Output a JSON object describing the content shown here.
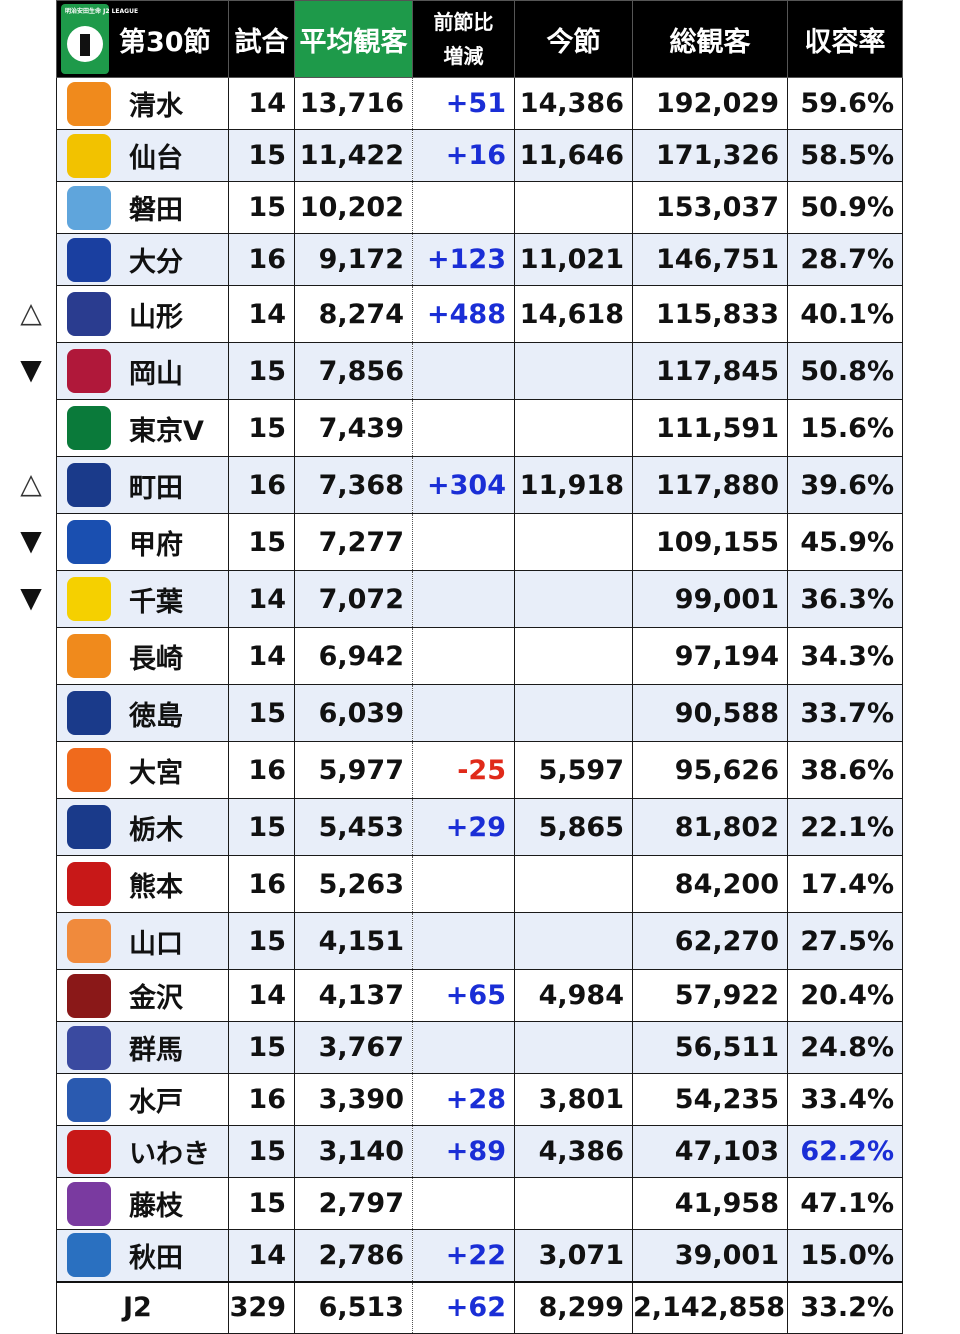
{
  "header": {
    "league_tag": "明治安田生命 J2 LEAGUE",
    "round": "第30節",
    "games": "試合",
    "avg": "平均観客",
    "diff_line1": "前節比",
    "diff_line2": "増減",
    "this_round": "今節",
    "total": "総観客",
    "capacity": "収容率"
  },
  "colors": {
    "header_bg": "#000000",
    "avg_header_bg": "#1e9a4a",
    "positive": "#1a2ed6",
    "negative": "#e02a1a",
    "alt_row": "#e8eef9"
  },
  "rows": [
    {
      "team": "清水",
      "logo": "shimizu-logo",
      "logo_color": "#f08a1c",
      "games": "14",
      "avg": "13,716",
      "diff": "+51",
      "this": "14,386",
      "total": "192,029",
      "cap": "59.6%",
      "arrow": ""
    },
    {
      "team": "仙台",
      "logo": "sendai-logo",
      "logo_color": "#f2c200",
      "games": "15",
      "avg": "11,422",
      "diff": "+16",
      "this": "11,646",
      "total": "171,326",
      "cap": "58.5%",
      "arrow": ""
    },
    {
      "team": "磐田",
      "logo": "iwata-logo",
      "logo_color": "#5fa5dc",
      "games": "15",
      "avg": "10,202",
      "diff": "",
      "this": "",
      "total": "153,037",
      "cap": "50.9%",
      "arrow": ""
    },
    {
      "team": "大分",
      "logo": "oita-logo",
      "logo_color": "#1a3fa0",
      "games": "16",
      "avg": "9,172",
      "diff": "+123",
      "this": "11,021",
      "total": "146,751",
      "cap": "28.7%",
      "arrow": ""
    },
    {
      "team": "山形",
      "logo": "yamagata-logo",
      "logo_color": "#2a3c8f",
      "games": "14",
      "avg": "8,274",
      "diff": "+488",
      "this": "14,618",
      "total": "115,833",
      "cap": "40.1%",
      "arrow": "△"
    },
    {
      "team": "岡山",
      "logo": "okayama-logo",
      "logo_color": "#b0183a",
      "games": "15",
      "avg": "7,856",
      "diff": "",
      "this": "",
      "total": "117,845",
      "cap": "50.8%",
      "arrow": "▼"
    },
    {
      "team": "東京V",
      "logo": "tokyov-logo",
      "logo_color": "#0a7a3a",
      "games": "15",
      "avg": "7,439",
      "diff": "",
      "this": "",
      "total": "111,591",
      "cap": "15.6%",
      "arrow": ""
    },
    {
      "team": "町田",
      "logo": "machida-logo",
      "logo_color": "#1a3a8a",
      "games": "16",
      "avg": "7,368",
      "diff": "+304",
      "this": "11,918",
      "total": "117,880",
      "cap": "39.6%",
      "arrow": "△"
    },
    {
      "team": "甲府",
      "logo": "kofu-logo",
      "logo_color": "#1a4fb0",
      "games": "15",
      "avg": "7,277",
      "diff": "",
      "this": "",
      "total": "109,155",
      "cap": "45.9%",
      "arrow": "▼"
    },
    {
      "team": "千葉",
      "logo": "chiba-logo",
      "logo_color": "#f5d000",
      "games": "14",
      "avg": "7,072",
      "diff": "",
      "this": "",
      "total": "99,001",
      "cap": "36.3%",
      "arrow": "▼"
    },
    {
      "team": "長崎",
      "logo": "nagasaki-logo",
      "logo_color": "#f08a1c",
      "games": "14",
      "avg": "6,942",
      "diff": "",
      "this": "",
      "total": "97,194",
      "cap": "34.3%",
      "arrow": ""
    },
    {
      "team": "徳島",
      "logo": "tokushima-logo",
      "logo_color": "#1a3a8a",
      "games": "15",
      "avg": "6,039",
      "diff": "",
      "this": "",
      "total": "90,588",
      "cap": "33.7%",
      "arrow": ""
    },
    {
      "team": "大宮",
      "logo": "omiya-logo",
      "logo_color": "#f06a1c",
      "games": "16",
      "avg": "5,977",
      "diff": "-25",
      "this": "5,597",
      "total": "95,626",
      "cap": "38.6%",
      "arrow": ""
    },
    {
      "team": "栃木",
      "logo": "tochigi-logo",
      "logo_color": "#1a3a8a",
      "games": "15",
      "avg": "5,453",
      "diff": "+29",
      "this": "5,865",
      "total": "81,802",
      "cap": "22.1%",
      "arrow": ""
    },
    {
      "team": "熊本",
      "logo": "kumamoto-logo",
      "logo_color": "#c81818",
      "games": "16",
      "avg": "5,263",
      "diff": "",
      "this": "",
      "total": "84,200",
      "cap": "17.4%",
      "arrow": ""
    },
    {
      "team": "山口",
      "logo": "yamaguchi-logo",
      "logo_color": "#f08a3c",
      "games": "15",
      "avg": "4,151",
      "diff": "",
      "this": "",
      "total": "62,270",
      "cap": "27.5%",
      "arrow": ""
    },
    {
      "team": "金沢",
      "logo": "kanazawa-logo",
      "logo_color": "#8a1818",
      "games": "14",
      "avg": "4,137",
      "diff": "+65",
      "this": "4,984",
      "total": "57,922",
      "cap": "20.4%",
      "arrow": ""
    },
    {
      "team": "群馬",
      "logo": "gunma-logo",
      "logo_color": "#3a4aa0",
      "games": "15",
      "avg": "3,767",
      "diff": "",
      "this": "",
      "total": "56,511",
      "cap": "24.8%",
      "arrow": ""
    },
    {
      "team": "水戸",
      "logo": "mito-logo",
      "logo_color": "#2a5ab0",
      "games": "16",
      "avg": "3,390",
      "diff": "+28",
      "this": "3,801",
      "total": "54,235",
      "cap": "33.4%",
      "arrow": ""
    },
    {
      "team": "いわき",
      "logo": "iwaki-logo",
      "logo_color": "#c81818",
      "games": "15",
      "avg": "3,140",
      "diff": "+89",
      "this": "4,386",
      "total": "47,103",
      "cap": "62.2%",
      "arrow": "",
      "cap_highlight": true
    },
    {
      "team": "藤枝",
      "logo": "fujieda-logo",
      "logo_color": "#7a3aa0",
      "games": "15",
      "avg": "2,797",
      "diff": "",
      "this": "",
      "total": "41,958",
      "cap": "47.1%",
      "arrow": ""
    },
    {
      "team": "秋田",
      "logo": "akita-logo",
      "logo_color": "#2a70c0",
      "games": "14",
      "avg": "2,786",
      "diff": "+22",
      "this": "3,071",
      "total": "39,001",
      "cap": "15.0%",
      "arrow": ""
    }
  ],
  "total_row": {
    "label": "J2",
    "games": "329",
    "avg": "6,513",
    "diff": "+62",
    "this": "8,299",
    "total": "2,142,858",
    "cap": "33.2%"
  }
}
